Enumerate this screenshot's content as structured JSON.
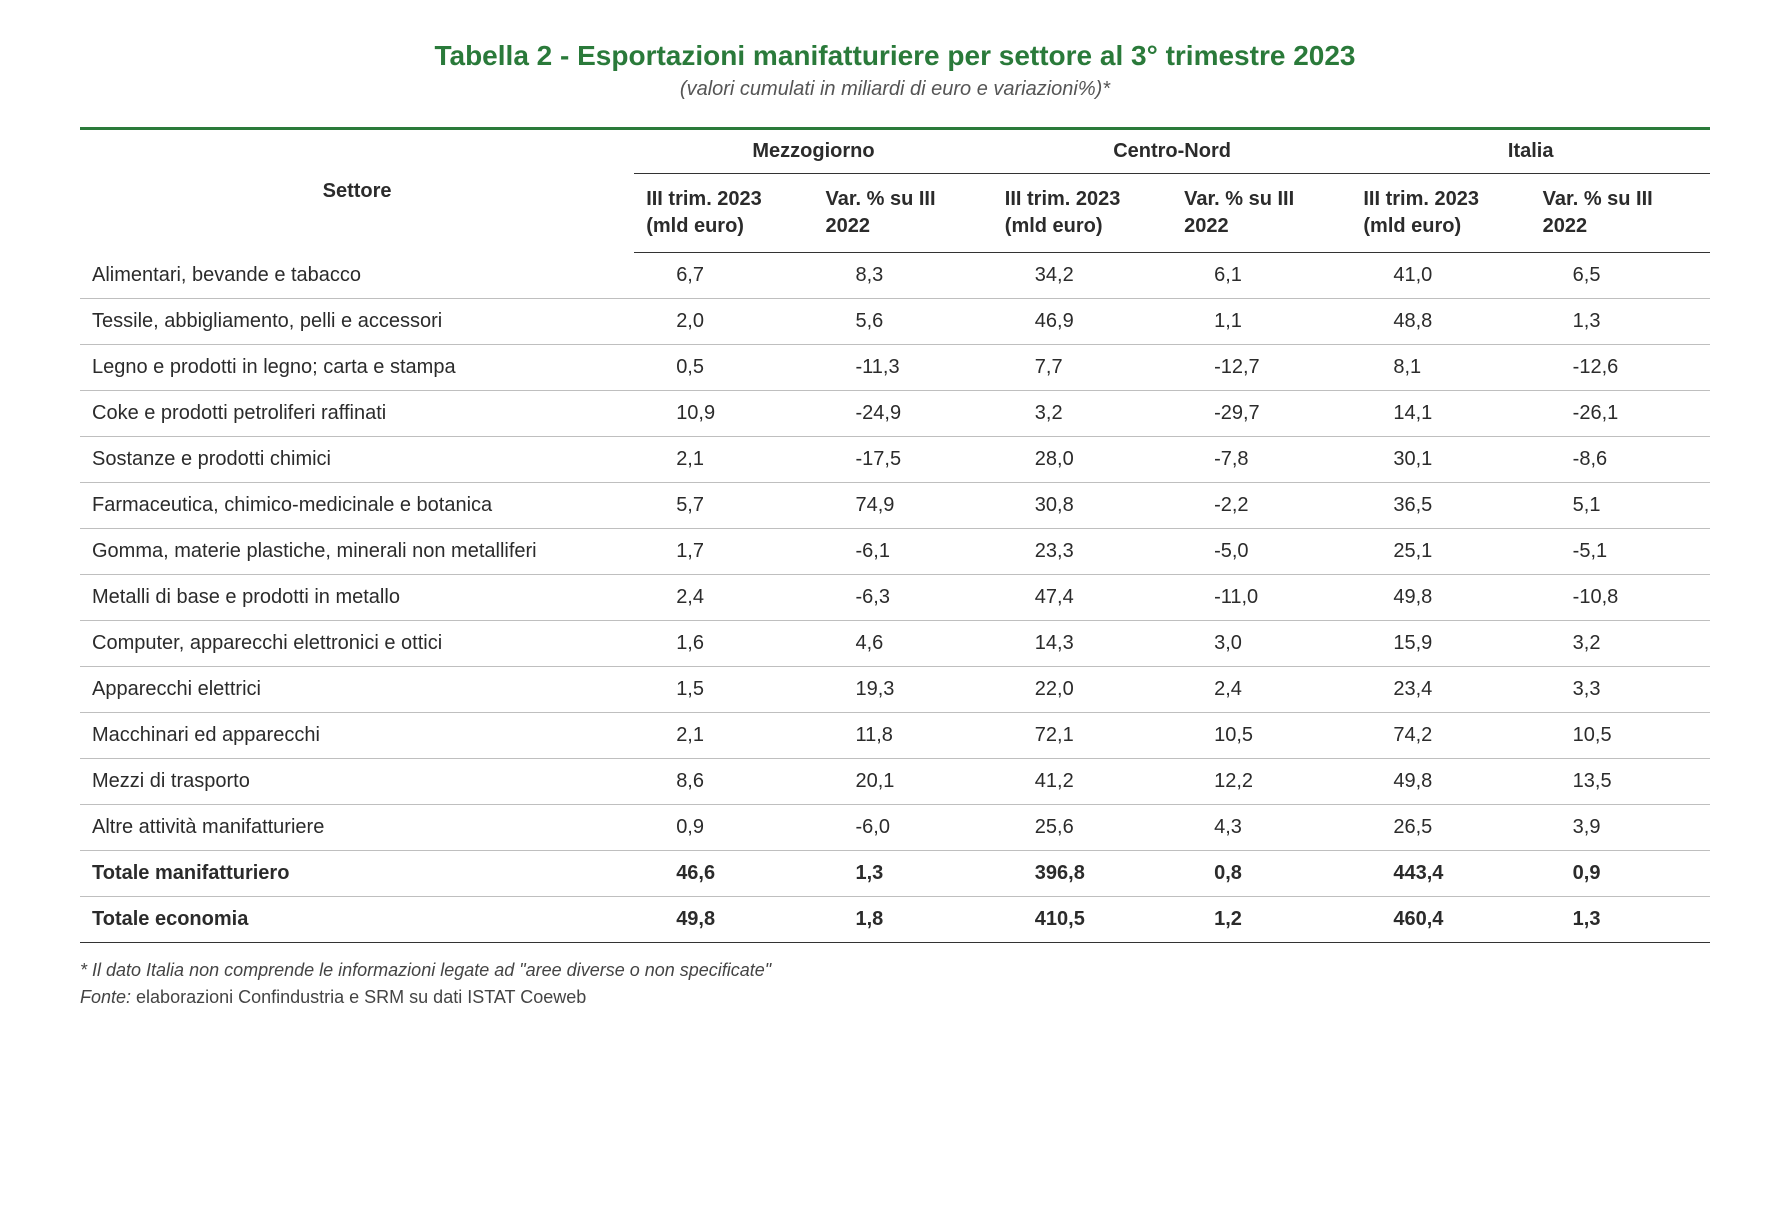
{
  "title": "Tabella 2 - Esportazioni manifatturiere per settore al 3° trimestre 2023",
  "title_color": "#2a7a3a",
  "subtitle": "(valori cumulati in miliardi di euro e variazioni%)*",
  "top_rule_color": "#2a7a3a",
  "text_color": "#2b2b2b",
  "background_color": "#ffffff",
  "row_border_color": "#bfbfbf",
  "header": {
    "sector_label": "Settore",
    "groups": [
      "Mezzogiorno",
      "Centro-Nord",
      "Italia"
    ],
    "subcols": {
      "value_label": "III trim. 2023 (mld euro)",
      "value_label_short": "III trim. 2023 (mld euro)",
      "var_label": "Var. % su III 2022"
    }
  },
  "rows": [
    {
      "sector": "Alimentari, bevande e tabacco",
      "m_v": "6,7",
      "m_p": "8,3",
      "cn_v": "34,2",
      "cn_p": "6,1",
      "it_v": "41,0",
      "it_p": "6,5",
      "bold": false
    },
    {
      "sector": "Tessile, abbigliamento, pelli e accessori",
      "m_v": "2,0",
      "m_p": "5,6",
      "cn_v": "46,9",
      "cn_p": "1,1",
      "it_v": "48,8",
      "it_p": "1,3",
      "bold": false
    },
    {
      "sector": "Legno e prodotti in legno; carta e stampa",
      "m_v": "0,5",
      "m_p": "-11,3",
      "cn_v": "7,7",
      "cn_p": "-12,7",
      "it_v": "8,1",
      "it_p": "-12,6",
      "bold": false
    },
    {
      "sector": "Coke e prodotti petroliferi raffinati",
      "m_v": "10,9",
      "m_p": "-24,9",
      "cn_v": "3,2",
      "cn_p": "-29,7",
      "it_v": "14,1",
      "it_p": "-26,1",
      "bold": false
    },
    {
      "sector": "Sostanze e prodotti chimici",
      "m_v": "2,1",
      "m_p": "-17,5",
      "cn_v": "28,0",
      "cn_p": "-7,8",
      "it_v": "30,1",
      "it_p": "-8,6",
      "bold": false
    },
    {
      "sector": "Farmaceutica, chimico-medicinale e botanica",
      "m_v": "5,7",
      "m_p": "74,9",
      "cn_v": "30,8",
      "cn_p": "-2,2",
      "it_v": "36,5",
      "it_p": "5,1",
      "bold": false
    },
    {
      "sector": "Gomma, materie plastiche, minerali non metalliferi",
      "m_v": "1,7",
      "m_p": "-6,1",
      "cn_v": "23,3",
      "cn_p": "-5,0",
      "it_v": "25,1",
      "it_p": "-5,1",
      "bold": false
    },
    {
      "sector": "Metalli di base e prodotti in metallo",
      "m_v": "2,4",
      "m_p": "-6,3",
      "cn_v": "47,4",
      "cn_p": "-11,0",
      "it_v": "49,8",
      "it_p": "-10,8",
      "bold": false
    },
    {
      "sector": "Computer, apparecchi elettronici e ottici",
      "m_v": "1,6",
      "m_p": "4,6",
      "cn_v": "14,3",
      "cn_p": "3,0",
      "it_v": "15,9",
      "it_p": "3,2",
      "bold": false
    },
    {
      "sector": "Apparecchi elettrici",
      "m_v": "1,5",
      "m_p": "19,3",
      "cn_v": "22,0",
      "cn_p": "2,4",
      "it_v": "23,4",
      "it_p": "3,3",
      "bold": false
    },
    {
      "sector": "Macchinari ed apparecchi",
      "m_v": "2,1",
      "m_p": "11,8",
      "cn_v": "72,1",
      "cn_p": "10,5",
      "it_v": "74,2",
      "it_p": "10,5",
      "bold": false
    },
    {
      "sector": "Mezzi di trasporto",
      "m_v": "8,6",
      "m_p": "20,1",
      "cn_v": "41,2",
      "cn_p": "12,2",
      "it_v": "49,8",
      "it_p": "13,5",
      "bold": false
    },
    {
      "sector": "Altre attività manifatturiere",
      "m_v": "0,9",
      "m_p": "-6,0",
      "cn_v": "25,6",
      "cn_p": "4,3",
      "it_v": "26,5",
      "it_p": "3,9",
      "bold": false
    },
    {
      "sector": "Totale manifatturiero",
      "m_v": "46,6",
      "m_p": "1,3",
      "cn_v": "396,8",
      "cn_p": "0,8",
      "it_v": "443,4",
      "it_p": "0,9",
      "bold": true
    },
    {
      "sector": "Totale economia",
      "m_v": "49,8",
      "m_p": "1,8",
      "cn_v": "410,5",
      "cn_p": "1,2",
      "it_v": "460,4",
      "it_p": "1,3",
      "bold": true
    }
  ],
  "footnote": {
    "note": "* Il dato Italia non comprende le informazioni legate ad \"aree diverse o non specificate\"",
    "source_label": "Fonte:",
    "source_text": " elaborazioni Confindustria e SRM su dati ISTAT Coeweb"
  },
  "fonts": {
    "title_size_pt": 21,
    "subtitle_size_pt": 15,
    "body_size_pt": 15,
    "footnote_size_pt": 13
  }
}
